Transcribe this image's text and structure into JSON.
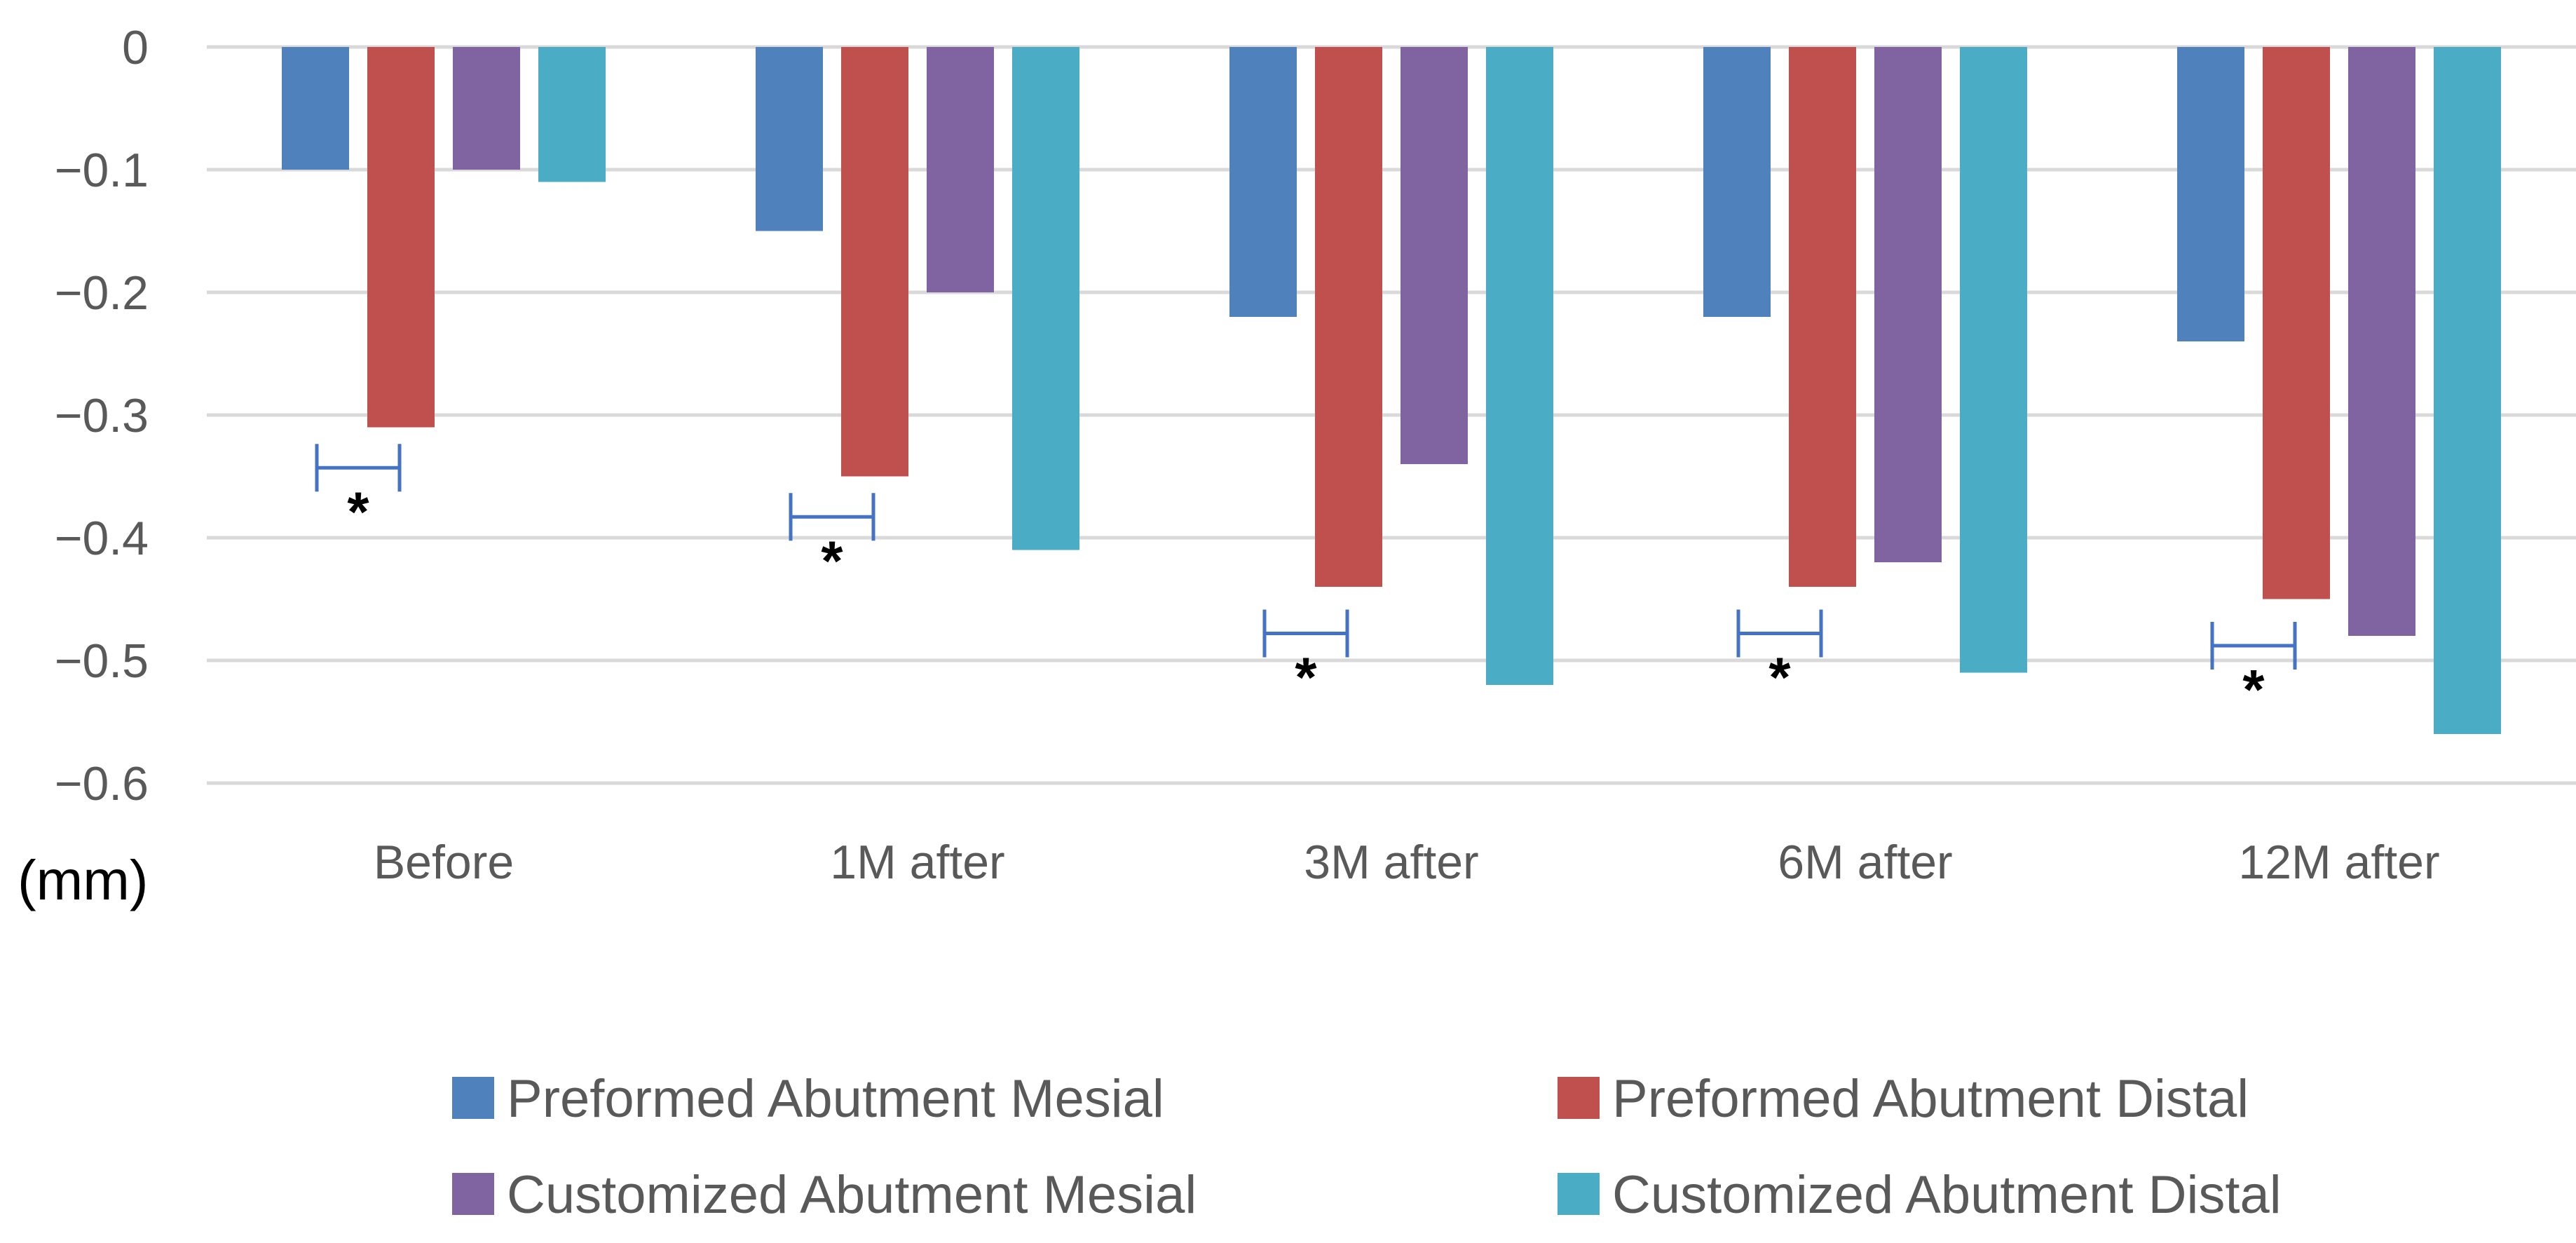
{
  "chart_data": {
    "type": "bar",
    "title": "",
    "xlabel": "",
    "ylabel": "(mm)",
    "ylim": [
      -0.6,
      0
    ],
    "yticks": [
      0,
      -0.1,
      -0.2,
      -0.3,
      -0.4,
      -0.5,
      -0.6
    ],
    "ytick_labels": [
      "0",
      "−0.1",
      "−0.2",
      "−0.3",
      "−0.4",
      "−0.5",
      "−0.6"
    ],
    "grid": true,
    "legend_position": "bottom",
    "categories": [
      "Before",
      "1M after",
      "3M after",
      "6M after",
      "12M after"
    ],
    "series": [
      {
        "name": "Preformed Abutment Mesial",
        "color": "#4f81bd",
        "values": [
          -0.1,
          -0.15,
          -0.22,
          -0.22,
          -0.24
        ]
      },
      {
        "name": "Preformed Abutment Distal",
        "color": "#c0504d",
        "values": [
          -0.31,
          -0.35,
          -0.44,
          -0.44,
          -0.45
        ]
      },
      {
        "name": "Customized Abutment Mesial",
        "color": "#8064a2",
        "values": [
          -0.1,
          -0.2,
          -0.34,
          -0.42,
          -0.48
        ]
      },
      {
        "name": "Customized Abutment Distal",
        "color": "#4bacc6",
        "values": [
          -0.11,
          -0.41,
          -0.52,
          -0.51,
          -0.56
        ]
      }
    ],
    "annotations": [
      {
        "category": "Before",
        "text": "*",
        "y": -0.343
      },
      {
        "category": "1M after",
        "text": "*",
        "y": -0.383
      },
      {
        "category": "3M after",
        "text": "*",
        "y": -0.478
      },
      {
        "category": "6M after",
        "text": "*",
        "y": -0.478
      },
      {
        "category": "12M after",
        "text": "*",
        "y": -0.488
      }
    ]
  }
}
